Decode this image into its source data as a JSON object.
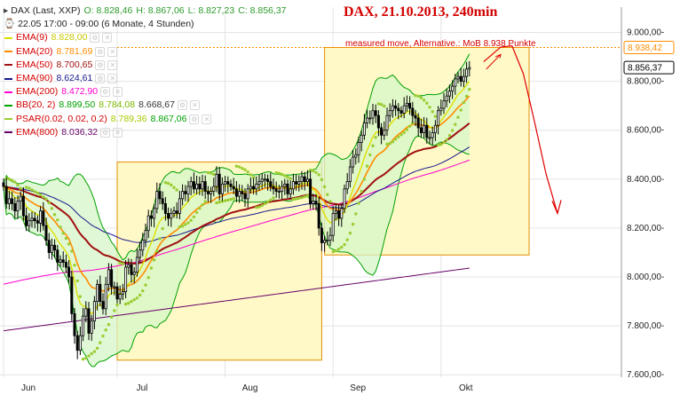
{
  "header": {
    "symbol": "DAX (Last, XXP)",
    "open": "O: 8.828,46",
    "high": "H: 8.867,06",
    "low": "L: 8.827,23",
    "close": "C: 8.856,37",
    "period": "22.05 17:00 - 09:00 (6 Monate, 4 Stunden)"
  },
  "legend": [
    {
      "label": "EMA(9)",
      "values": [
        "8.828,00"
      ],
      "color": "#e0e000"
    },
    {
      "label": "EMA(20)",
      "values": [
        "8.781,69"
      ],
      "color": "#ff8c00"
    },
    {
      "label": "EMA(50)",
      "values": [
        "8.700,65"
      ],
      "color": "#a01010"
    },
    {
      "label": "EMA(90)",
      "values": [
        "8.624,61"
      ],
      "color": "#1a1a8c"
    },
    {
      "label": "EMA(200)",
      "values": [
        "8.472,90"
      ],
      "color": "#ff00cc"
    },
    {
      "label": "BB(20, 2)",
      "values": [
        "8.899,50",
        "8.784,08",
        "8.668,67"
      ],
      "colors": [
        "#00a000",
        "#7ab800",
        "#333333"
      ],
      "color": "#00a000"
    },
    {
      "label": "PSAR(0.02, 0.02, 0.2)",
      "values": [
        "8.789,36",
        "8.867,06"
      ],
      "colors": [
        "#a8c800",
        "#00a000"
      ],
      "color": "#9acd32"
    },
    {
      "label": "EMA(800)",
      "values": [
        "8.036,32"
      ],
      "color": "#660066"
    }
  ],
  "title": "DAX,  21.10.2013,  240min",
  "annotation": "measured move, Alternative.: MoB 8.938 Punkte",
  "colors": {
    "candle": "#000000",
    "bb_fill": "#d6f5c8",
    "box_fill": "#fff9c8",
    "box_stroke": "#e09000",
    "projection": "#e00000",
    "grid": "#e4e4e4"
  },
  "chart_data": {
    "type": "candlestick",
    "title": "DAX,  21.10.2013,  240min",
    "x_axis_labels": [
      "Jun",
      "Jul",
      "Aug",
      "Sep",
      "Okt"
    ],
    "y_ticks": [
      "9.000,00-",
      "8.800,00-",
      "8.600,00-",
      "8.400,00-",
      "8.200,00-",
      "8.000,00-",
      "7.800,00-",
      "7.600,00-"
    ],
    "y_tick_values": [
      9000,
      8800,
      8600,
      8400,
      8200,
      8000,
      7800,
      7600
    ],
    "ylim": [
      7590,
      9060
    ],
    "price_labels": [
      {
        "text": "8.938,42",
        "value": 8938.42,
        "color": "#ff8c00"
      },
      {
        "text": "8.856,37",
        "value": 8856.37,
        "color": "#000000"
      }
    ],
    "months": [
      {
        "label": "Jun",
        "start_index": 0
      },
      {
        "label": "Jul",
        "start_index": 40
      },
      {
        "label": "Aug",
        "start_index": 78
      },
      {
        "label": "Sep",
        "start_index": 116
      },
      {
        "label": "Okt",
        "start_index": 154
      }
    ],
    "close": [
      8370,
      8300,
      8320,
      8300,
      8270,
      8310,
      8330,
      8250,
      8210,
      8230,
      8240,
      8230,
      8220,
      8270,
      8210,
      8150,
      8100,
      8130,
      8110,
      8060,
      8070,
      8060,
      8040,
      8000,
      7850,
      7760,
      7700,
      7760,
      7840,
      7870,
      7770,
      7820,
      7900,
      7970,
      7900,
      7870,
      7970,
      8030,
      7960,
      7960,
      7910,
      7930,
      7940,
      8040,
      8050,
      8010,
      8020,
      8080,
      8110,
      8150,
      8190,
      8250,
      8240,
      8280,
      8350,
      8320,
      8300,
      8260,
      8240,
      8260,
      8270,
      8260,
      8320,
      8350,
      8340,
      8370,
      8390,
      8360,
      8380,
      8360,
      8390,
      8350,
      8340,
      8350,
      8370,
      8420,
      8340,
      8380,
      8390,
      8380,
      8370,
      8360,
      8330,
      8350,
      8340,
      8320,
      8360,
      8370,
      8360,
      8380,
      8390,
      8400,
      8400,
      8390,
      8370,
      8360,
      8350,
      8350,
      8370,
      8380,
      8340,
      8360,
      8390,
      8380,
      8390,
      8410,
      8390,
      8400,
      8300,
      8310,
      8300,
      8200,
      8140,
      8150,
      8150,
      8170,
      8260,
      8270,
      8240,
      8280,
      8360,
      8390,
      8450,
      8490,
      8500,
      8550,
      8580,
      8630,
      8650,
      8650,
      8680,
      8660,
      8610,
      8580,
      8600,
      8660,
      8680,
      8700,
      8690,
      8680,
      8670,
      8700,
      8710,
      8690,
      8660,
      8650,
      8610,
      8590,
      8620,
      8570,
      8570,
      8590,
      8620,
      8680,
      8690,
      8720,
      8740,
      8760,
      8780,
      8810,
      8820,
      8800,
      8820,
      8850,
      8856.37
    ],
    "indicators": [
      {
        "name": "EMA(9)",
        "value": 8828.0
      },
      {
        "name": "EMA(20)",
        "value": 8781.69
      },
      {
        "name": "EMA(50)",
        "value": 8700.65
      },
      {
        "name": "EMA(90)",
        "value": 8624.61
      },
      {
        "name": "EMA(200)",
        "value": 8472.9
      },
      {
        "name": "BB(20, 2)",
        "values": [
          8899.5,
          8784.08,
          8668.67
        ]
      },
      {
        "name": "PSAR(0.02, 0.02, 0.2)",
        "values": [
          8789.36,
          8867.06
        ]
      },
      {
        "name": "EMA(800)",
        "value": 8036.32
      }
    ],
    "boxes": [
      {
        "from_index": 40,
        "to_index": 112,
        "low": 7660,
        "high": 8470
      },
      {
        "from_index": 113,
        "to_index": 185,
        "low": 8090,
        "high": 8938.42
      }
    ],
    "projection": [
      {
        "index": 169,
        "value": 8880
      },
      {
        "index": 175,
        "value": 8940
      },
      {
        "index": 179,
        "value": 8945
      },
      {
        "index": 183,
        "value": 8830
      },
      {
        "index": 187,
        "value": 8630
      },
      {
        "index": 191,
        "value": 8420
      },
      {
        "index": 195,
        "value": 8260
      }
    ],
    "measured_move_target": 8938
  }
}
